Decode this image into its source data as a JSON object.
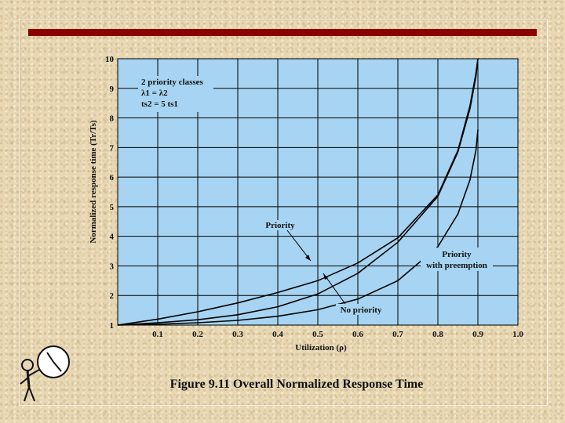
{
  "caption": "Figure 9.11 Overall Normalized Response Time",
  "colors": {
    "plot_bg": "#a6d4f2",
    "title_bar": "#8b0000",
    "grid": "#000000"
  },
  "chart_data": {
    "type": "line",
    "xlabel": "Utilization (ρ)",
    "ylabel": "Normalized response time (Tr/Ts)",
    "xlim": [
      0,
      1.0
    ],
    "ylim": [
      1,
      10
    ],
    "x_ticks": [
      "0.1",
      "0.2",
      "0.3",
      "0.4",
      "0.5",
      "0.6",
      "0.7",
      "0.8",
      "0.9",
      "1.0"
    ],
    "y_ticks": [
      "1",
      "2",
      "3",
      "4",
      "5",
      "6",
      "7",
      "8",
      "9",
      "10"
    ],
    "legend_text": {
      "line1": "2 priority classes",
      "line2": "λ1 = λ2",
      "line3": "ts2 = 5   ts1"
    },
    "series": [
      {
        "name": "Priority",
        "x": [
          0,
          0.1,
          0.2,
          0.3,
          0.4,
          0.5,
          0.6,
          0.7,
          0.8,
          0.85,
          0.88,
          0.895,
          0.9
        ],
        "y": [
          1.0,
          1.2,
          1.45,
          1.75,
          2.1,
          2.5,
          3.1,
          3.95,
          5.4,
          6.9,
          8.4,
          9.5,
          10.0
        ]
      },
      {
        "name": "No priority",
        "x": [
          0,
          0.1,
          0.2,
          0.3,
          0.4,
          0.5,
          0.6,
          0.7,
          0.8,
          0.85,
          0.88,
          0.895,
          0.9
        ],
        "y": [
          1.0,
          1.08,
          1.18,
          1.35,
          1.62,
          2.05,
          2.75,
          3.8,
          5.35,
          6.85,
          8.3,
          9.4,
          10.0
        ]
      },
      {
        "name": "Priority with preemption",
        "x": [
          0,
          0.1,
          0.2,
          0.3,
          0.4,
          0.5,
          0.6,
          0.7,
          0.8,
          0.85,
          0.88,
          0.895,
          0.9
        ],
        "y": [
          1.0,
          1.03,
          1.08,
          1.16,
          1.3,
          1.52,
          1.88,
          2.5,
          3.65,
          4.75,
          5.9,
          6.9,
          7.6
        ]
      }
    ],
    "annotations": [
      {
        "text": "Priority",
        "target_series": "Priority"
      },
      {
        "text": "No priority",
        "target_series": "No priority"
      },
      {
        "text": "Priority",
        "target_series": "Priority with preemption"
      },
      {
        "text": "with preemption",
        "target_series": "Priority with preemption"
      }
    ]
  }
}
